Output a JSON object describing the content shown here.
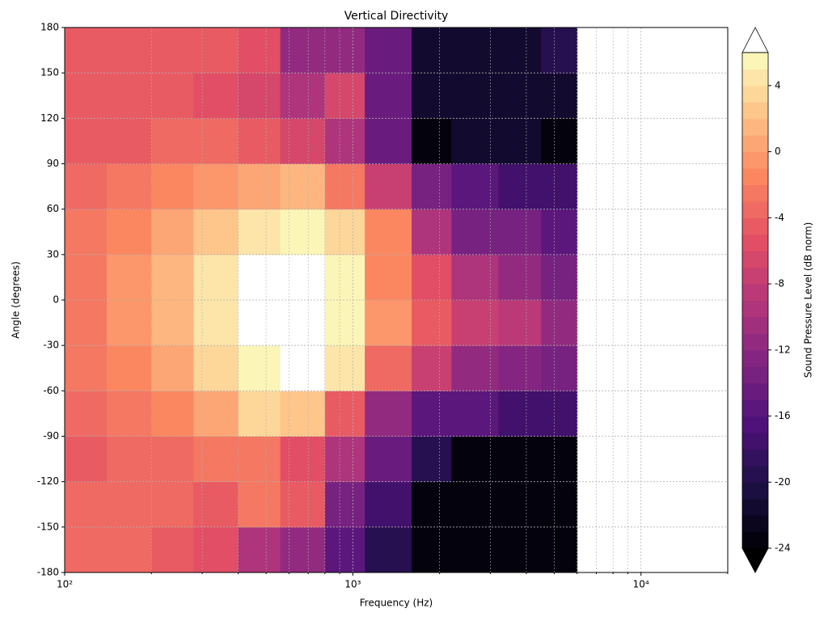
{
  "chart_data": {
    "type": "contourf",
    "title": "Vertical Directivity",
    "xlabel": "Frequency (Hz)",
    "ylabel": "Angle (degrees)",
    "colorbar_label": "Sound Pressure Level (dB norm)",
    "xscale": "log",
    "xlim": [
      100,
      20000
    ],
    "ylim": [
      -180,
      180
    ],
    "xticks": [
      {
        "value": 100,
        "label": "10²"
      },
      {
        "value": 1000,
        "label": "10³"
      },
      {
        "value": 10000,
        "label": "10⁴"
      }
    ],
    "xminorticks": [
      200,
      300,
      400,
      500,
      600,
      700,
      800,
      900,
      2000,
      3000,
      4000,
      5000,
      6000,
      7000,
      8000,
      9000,
      20000
    ],
    "yticks": [
      -180,
      -150,
      -120,
      -90,
      -60,
      -30,
      0,
      30,
      60,
      90,
      120,
      150,
      180
    ],
    "grid": true,
    "x_edges": [
      100,
      140,
      200,
      280,
      400,
      560,
      800,
      1100,
      1600,
      2200,
      3200,
      4500,
      6000
    ],
    "y_edges": [
      -180,
      -150,
      -120,
      -90,
      -60,
      -30,
      0,
      30,
      60,
      90,
      120,
      150,
      180
    ],
    "z": [
      [
        -4,
        -4,
        -5,
        -6,
        -10,
        -12,
        -16,
        -20,
        -24,
        -24,
        -24,
        -24
      ],
      [
        -4,
        -4,
        -4,
        -5,
        -3,
        -5,
        -14,
        -18,
        -24,
        -24,
        -24,
        -24
      ],
      [
        -5,
        -4,
        -4,
        -3,
        -3,
        -6,
        -10,
        -15,
        -20,
        -24,
        -24,
        -24
      ],
      [
        -4,
        -3,
        -2,
        0,
        3,
        2,
        -5,
        -12,
        -16,
        -16,
        -18,
        -18
      ],
      [
        -3,
        -2,
        0,
        3,
        6,
        7,
        4,
        -4,
        -8,
        -12,
        -13,
        -14
      ],
      [
        -3,
        -1,
        1,
        4,
        7,
        7,
        5,
        -1,
        -5,
        -8,
        -9,
        -12
      ],
      [
        -3,
        -1,
        1,
        4,
        7,
        7,
        5,
        -2,
        -6,
        -10,
        -12,
        -14
      ],
      [
        -3,
        -2,
        0,
        2,
        4,
        5,
        3,
        -2,
        -10,
        -14,
        -14,
        -16
      ],
      [
        -4,
        -3,
        -2,
        -1,
        0,
        1,
        -3,
        -8,
        -14,
        -16,
        -18,
        -18
      ],
      [
        -5,
        -5,
        -4,
        -4,
        -5,
        -7,
        -10,
        -15,
        -24,
        -22,
        -22,
        -24
      ],
      [
        -5,
        -5,
        -5,
        -6,
        -7,
        -10,
        -7,
        -15,
        -22,
        -22,
        -22,
        -22
      ],
      [
        -5,
        -5,
        -5,
        -5,
        -6,
        -12,
        -12,
        -15,
        -22,
        -22,
        -22,
        -20
      ]
    ],
    "levels": [
      -24,
      -23,
      -22,
      -21,
      -20,
      -19,
      -18,
      -17,
      -16,
      -15,
      -14,
      -13,
      -12,
      -11,
      -10,
      -9,
      -8,
      -7,
      -6,
      -5,
      -4,
      -3,
      -2,
      -1,
      0,
      1,
      2,
      3,
      4,
      5,
      6
    ],
    "colorbar_ticks": [
      -24,
      -20,
      -16,
      -12,
      -8,
      -4,
      0,
      4
    ],
    "colormap": [
      "#000004",
      "#1c1044",
      "#4f127b",
      "#812581",
      "#b5367a",
      "#e55064",
      "#fb8761",
      "#fec287",
      "#fcfdbf"
    ],
    "over_color": "#ffffff",
    "under_color": "#000000"
  }
}
